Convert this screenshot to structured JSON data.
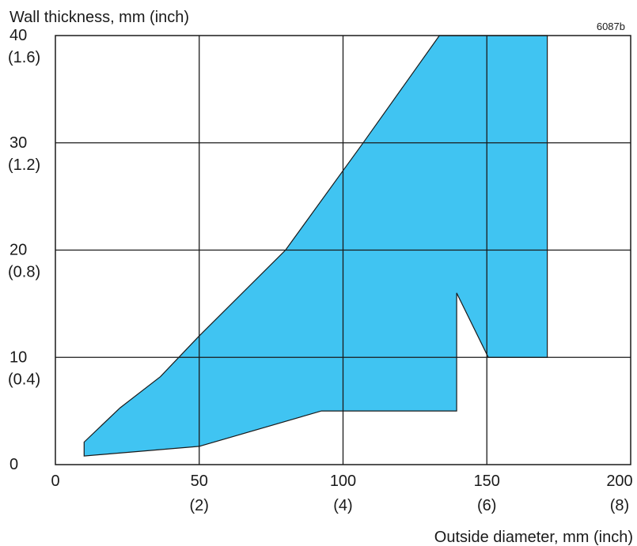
{
  "chart_data": {
    "type": "area",
    "figure_id": "6087b",
    "ylabel": "Wall thickness, mm (inch)",
    "xlabel": "Outside diameter, mm (inch)",
    "xlim": [
      0,
      200
    ],
    "ylim": [
      0,
      40
    ],
    "grid": true,
    "fill_color": "#40c4f2",
    "line_color": "#1a1a1a",
    "x_ticks": [
      {
        "value": 0,
        "label": "0",
        "sublabel": ""
      },
      {
        "value": 50,
        "label": "50",
        "sublabel": "(2)"
      },
      {
        "value": 100,
        "label": "100",
        "sublabel": "(4)"
      },
      {
        "value": 150,
        "label": "150",
        "sublabel": "(6)"
      },
      {
        "value": 200,
        "label": "200",
        "sublabel": "(8)"
      }
    ],
    "y_ticks": [
      {
        "value": 0,
        "label": "0",
        "sublabel": ""
      },
      {
        "value": 10,
        "label": "10",
        "sublabel": "(0.4)"
      },
      {
        "value": 20,
        "label": "20",
        "sublabel": "(0.8)"
      },
      {
        "value": 30,
        "label": "30",
        "sublabel": "(1.2)"
      },
      {
        "value": 40,
        "label": "40",
        "sublabel": "(1.6)"
      }
    ],
    "region": [
      [
        10,
        2.1
      ],
      [
        22.5,
        5.3
      ],
      [
        36.5,
        8.2
      ],
      [
        50,
        12.0
      ],
      [
        80,
        20.0
      ],
      [
        107,
        30.0
      ],
      [
        133.5,
        40.0
      ],
      [
        171,
        40.0
      ],
      [
        171,
        10.0
      ],
      [
        150.5,
        10.0
      ],
      [
        139.5,
        16.0
      ],
      [
        139.5,
        5.0
      ],
      [
        92.5,
        5.0
      ],
      [
        50,
        1.7
      ],
      [
        10,
        0.8
      ]
    ]
  }
}
